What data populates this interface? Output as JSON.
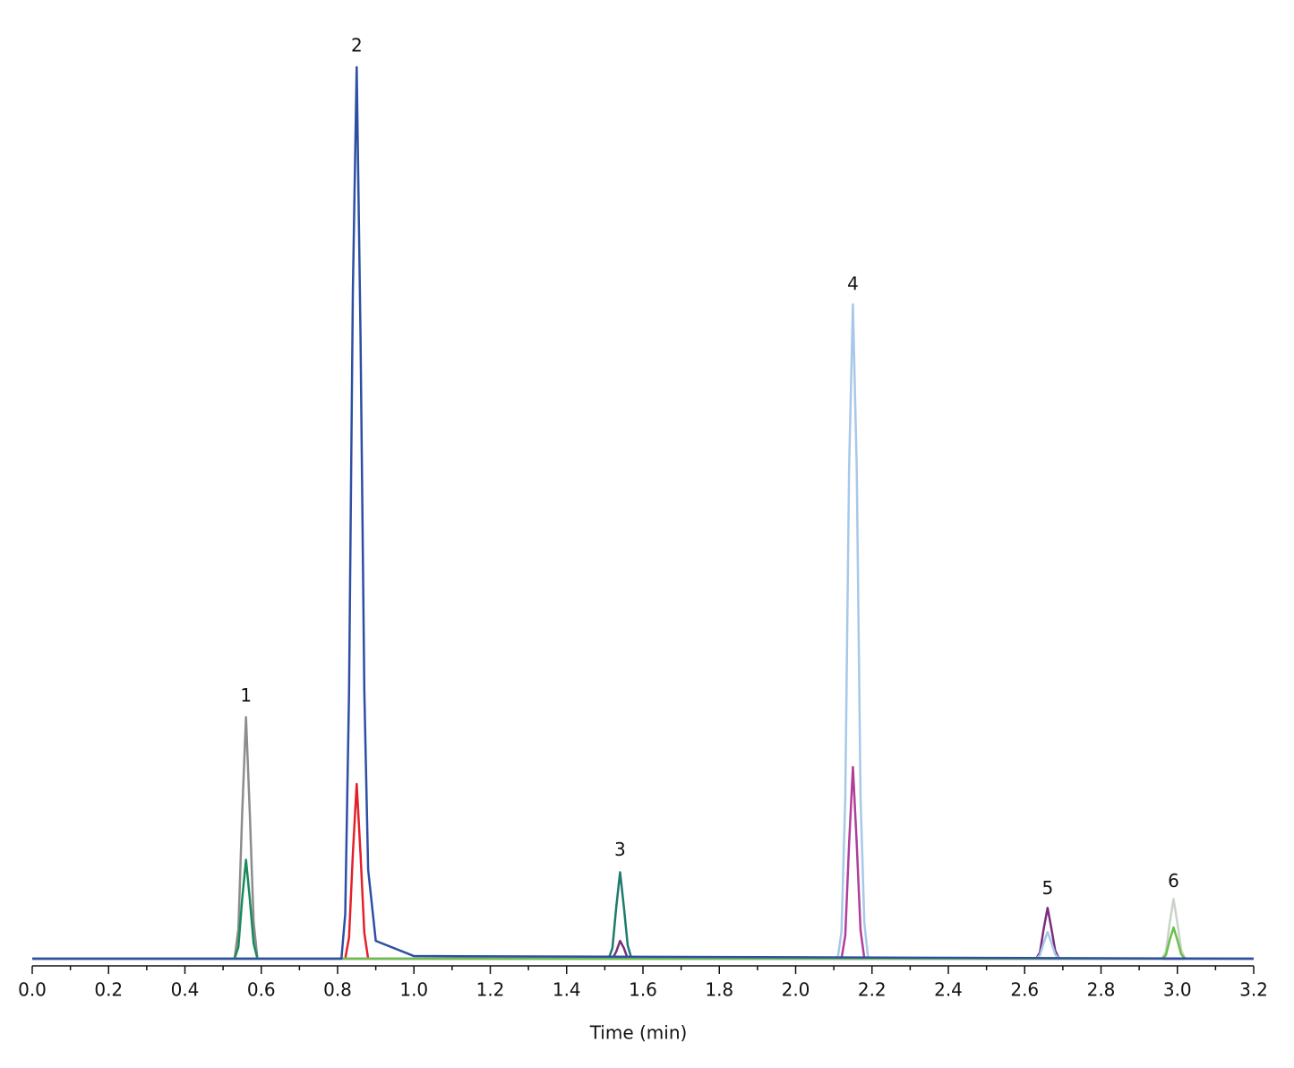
{
  "chart_data": {
    "type": "line",
    "xlabel": "Time (min)",
    "xlim": [
      0,
      3.2
    ],
    "ylim": [
      -0.8,
      100
    ],
    "xticks": [
      {
        "value": 0,
        "label": "0.0"
      },
      0.2,
      0.4,
      0.6,
      0.8,
      {
        "value": 1,
        "label": "1.0"
      },
      1.2,
      1.4,
      1.6,
      1.8,
      {
        "value": 2,
        "label": "2.0"
      },
      2.2,
      2.4,
      2.6,
      2.8,
      {
        "value": 3,
        "label": "3.0"
      },
      3.2
    ],
    "series": [
      {
        "color": "#8c8c8c",
        "x": [
          0,
          0.53,
          0.54,
          0.55,
          0.56,
          0.57,
          0.58,
          0.59,
          3.2
        ],
        "values": [
          0,
          0,
          3.3,
          16.3,
          27.1,
          16.3,
          4.1,
          0,
          0
        ]
      },
      {
        "color": "#1a8a5a",
        "x": [
          0,
          0.53,
          0.54,
          0.55,
          0.56,
          0.57,
          0.58,
          0.59,
          3.2
        ],
        "values": [
          0,
          0,
          1.3,
          6.7,
          11.1,
          6.7,
          1.7,
          0,
          0
        ]
      },
      {
        "color": "#e3202a",
        "x": [
          0,
          0.82,
          0.83,
          0.84,
          0.85,
          0.86,
          0.87,
          0.88,
          3.2
        ],
        "values": [
          0,
          0,
          2.4,
          11.8,
          19.6,
          11.8,
          2.9,
          0,
          0
        ]
      },
      {
        "color": "#1f7a6e",
        "x": [
          0,
          1.51,
          1.52,
          1.53,
          1.54,
          1.55,
          1.56,
          1.57,
          3.2
        ],
        "values": [
          0,
          0,
          1.2,
          5.8,
          9.7,
          5.8,
          1.5,
          0,
          0
        ]
      },
      {
        "color": "#7b2d7f",
        "x": [
          0,
          1.52,
          1.53,
          1.54,
          1.55,
          1.56,
          2.63,
          2.64,
          2.65,
          2.66,
          2.67,
          2.68,
          2.69,
          3.2
        ],
        "values": [
          0,
          0,
          0.8,
          2.0,
          1.2,
          0,
          0,
          0.7,
          3.4,
          5.7,
          3.4,
          0.9,
          0,
          0
        ]
      },
      {
        "color": "#a7c8e8",
        "x": [
          0,
          2.11,
          2.12,
          2.13,
          2.14,
          2.15,
          2.16,
          2.17,
          2.18,
          2.19,
          2.63,
          2.64,
          2.65,
          2.66,
          2.67,
          2.68,
          2.69,
          3.2
        ],
        "values": [
          0,
          0,
          3,
          18,
          55,
          73.4,
          55,
          18,
          4,
          0,
          0,
          0.4,
          1.8,
          3.0,
          1.8,
          0.5,
          0,
          0
        ]
      },
      {
        "color": "#b03d9a",
        "x": [
          0,
          2.12,
          2.13,
          2.14,
          2.15,
          2.16,
          2.17,
          2.18,
          3.2
        ],
        "values": [
          0,
          0,
          2.6,
          12.9,
          21.5,
          12.9,
          3.2,
          0,
          0
        ]
      },
      {
        "color": "#c9d3c9",
        "x": [
          0,
          2.96,
          2.97,
          2.98,
          2.99,
          3.0,
          3.01,
          3.02,
          3.2
        ],
        "values": [
          0,
          0,
          0.8,
          4.0,
          6.7,
          4.0,
          1.0,
          0,
          0
        ]
      },
      {
        "color": "#6cbf4a",
        "x": [
          0,
          2.96,
          2.97,
          2.98,
          2.99,
          3.0,
          3.01,
          3.02,
          3.2
        ],
        "values": [
          0,
          0,
          0.4,
          2.1,
          3.5,
          2.1,
          0.5,
          0,
          0
        ]
      },
      {
        "color": "#2d4fa3",
        "x": [
          0,
          0.81,
          0.82,
          0.83,
          0.84,
          0.85,
          0.86,
          0.87,
          0.88,
          0.9,
          1.0,
          3.2
        ],
        "values": [
          0,
          0,
          5,
          30,
          75,
          100,
          70,
          30,
          10,
          2,
          0.3,
          0
        ]
      }
    ],
    "annotations": [
      {
        "text": "1",
        "x": 0.56,
        "y": 29.4
      },
      {
        "text": "2",
        "x": 0.85,
        "y": 102.3
      },
      {
        "text": "3",
        "x": 1.54,
        "y": 12.1
      },
      {
        "text": "4",
        "x": 2.15,
        "y": 75.6
      },
      {
        "text": "5",
        "x": 2.66,
        "y": 7.8
      },
      {
        "text": "6",
        "x": 2.99,
        "y": 8.6
      }
    ]
  }
}
